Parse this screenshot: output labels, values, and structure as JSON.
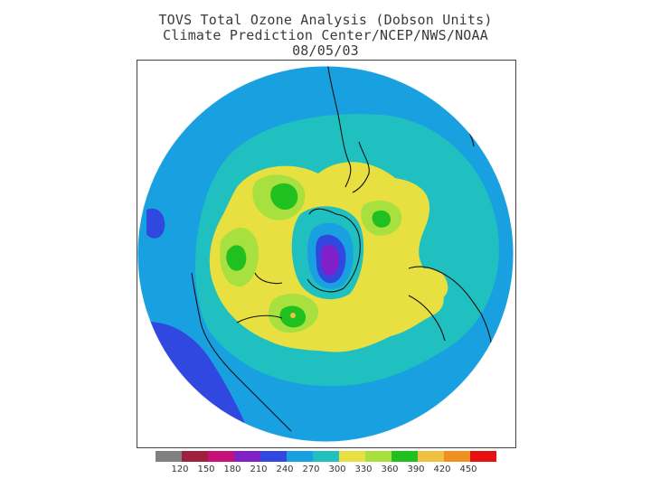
{
  "title": {
    "line1": "TOVS Total Ozone Analysis (Dobson Units)",
    "line2": "Climate Prediction Center/NCEP/NWS/NOAA",
    "line3": "08/05/03"
  },
  "legend": {
    "unit": "Dobson Units",
    "swatches": [
      "#808080",
      "#a02040",
      "#c8107a",
      "#8020c8",
      "#3048e0",
      "#18a0e0",
      "#20c0c0",
      "#e8e040",
      "#a8e040",
      "#20c020",
      "#f0c040",
      "#f09020",
      "#e81010"
    ],
    "ticks": [
      "120",
      "150",
      "180",
      "210",
      "240",
      "270",
      "300",
      "330",
      "360",
      "390",
      "420",
      "450"
    ]
  },
  "map": {
    "projection": "north polar stereographic",
    "palette": {
      "low_240": "#3048e0",
      "low_210": "#8020c8",
      "band_270": "#18a0e0",
      "band_300": "#20c0c0",
      "band_330": "#e8e040",
      "band_360": "#a8e040",
      "band_390": "#20c020",
      "band_420": "#f0c040"
    }
  }
}
